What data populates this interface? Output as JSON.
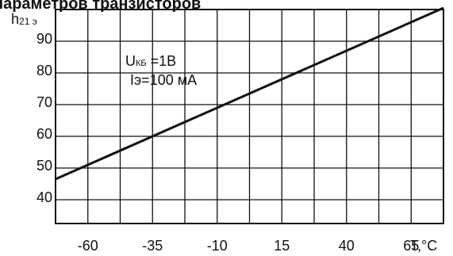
{
  "header": {
    "title_fragment": "параметров транзисторов"
  },
  "chart_data": {
    "type": "line",
    "ylabel_main": "h",
    "ylabel_sub": "21 э",
    "xlabel": "T,°C",
    "xlim": [
      -72.5,
      77.5
    ],
    "ylim": [
      32.5,
      100
    ],
    "x_ticks": [
      -60,
      -35,
      -10,
      15,
      40,
      65
    ],
    "y_ticks": [
      40,
      50,
      60,
      70,
      80,
      90
    ],
    "grid": true,
    "annotations": [
      {
        "main": "U",
        "sub": "КБ",
        "rest": " =1В"
      },
      {
        "main": "Iэ=100 мА",
        "sub": "",
        "rest": ""
      }
    ],
    "series": [
      {
        "x": [
          -72.5,
          77.5
        ],
        "y": [
          46.5,
          100.5
        ]
      }
    ]
  }
}
